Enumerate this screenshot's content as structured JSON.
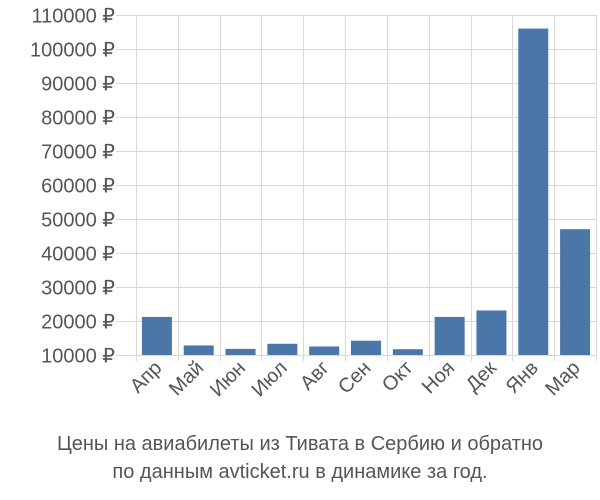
{
  "chart_data": {
    "type": "bar",
    "categories": [
      "Апр",
      "Май",
      "Июн",
      "Июл",
      "Авг",
      "Сен",
      "Окт",
      "Ноя",
      "Дек",
      "Янв",
      "Мар"
    ],
    "values": [
      21200,
      12800,
      11800,
      13300,
      12500,
      14200,
      11700,
      21200,
      23100,
      106000,
      47000
    ],
    "ylim": [
      10000,
      110000
    ],
    "yticks": [
      10000,
      20000,
      30000,
      40000,
      50000,
      60000,
      70000,
      80000,
      90000,
      100000,
      110000
    ],
    "ytick_labels": [
      "10000 ₽",
      "20000 ₽",
      "30000 ₽",
      "40000 ₽",
      "50000 ₽",
      "60000 ₽",
      "70000 ₽",
      "80000 ₽",
      "90000 ₽",
      "100000 ₽",
      "110000 ₽"
    ],
    "grid": true,
    "bar_color": "#4a76a8"
  },
  "caption": {
    "line1": "Цены на авиабилеты из Тивата в Сербию и обратно",
    "line2": "по данным avticket.ru в динамике за год."
  }
}
